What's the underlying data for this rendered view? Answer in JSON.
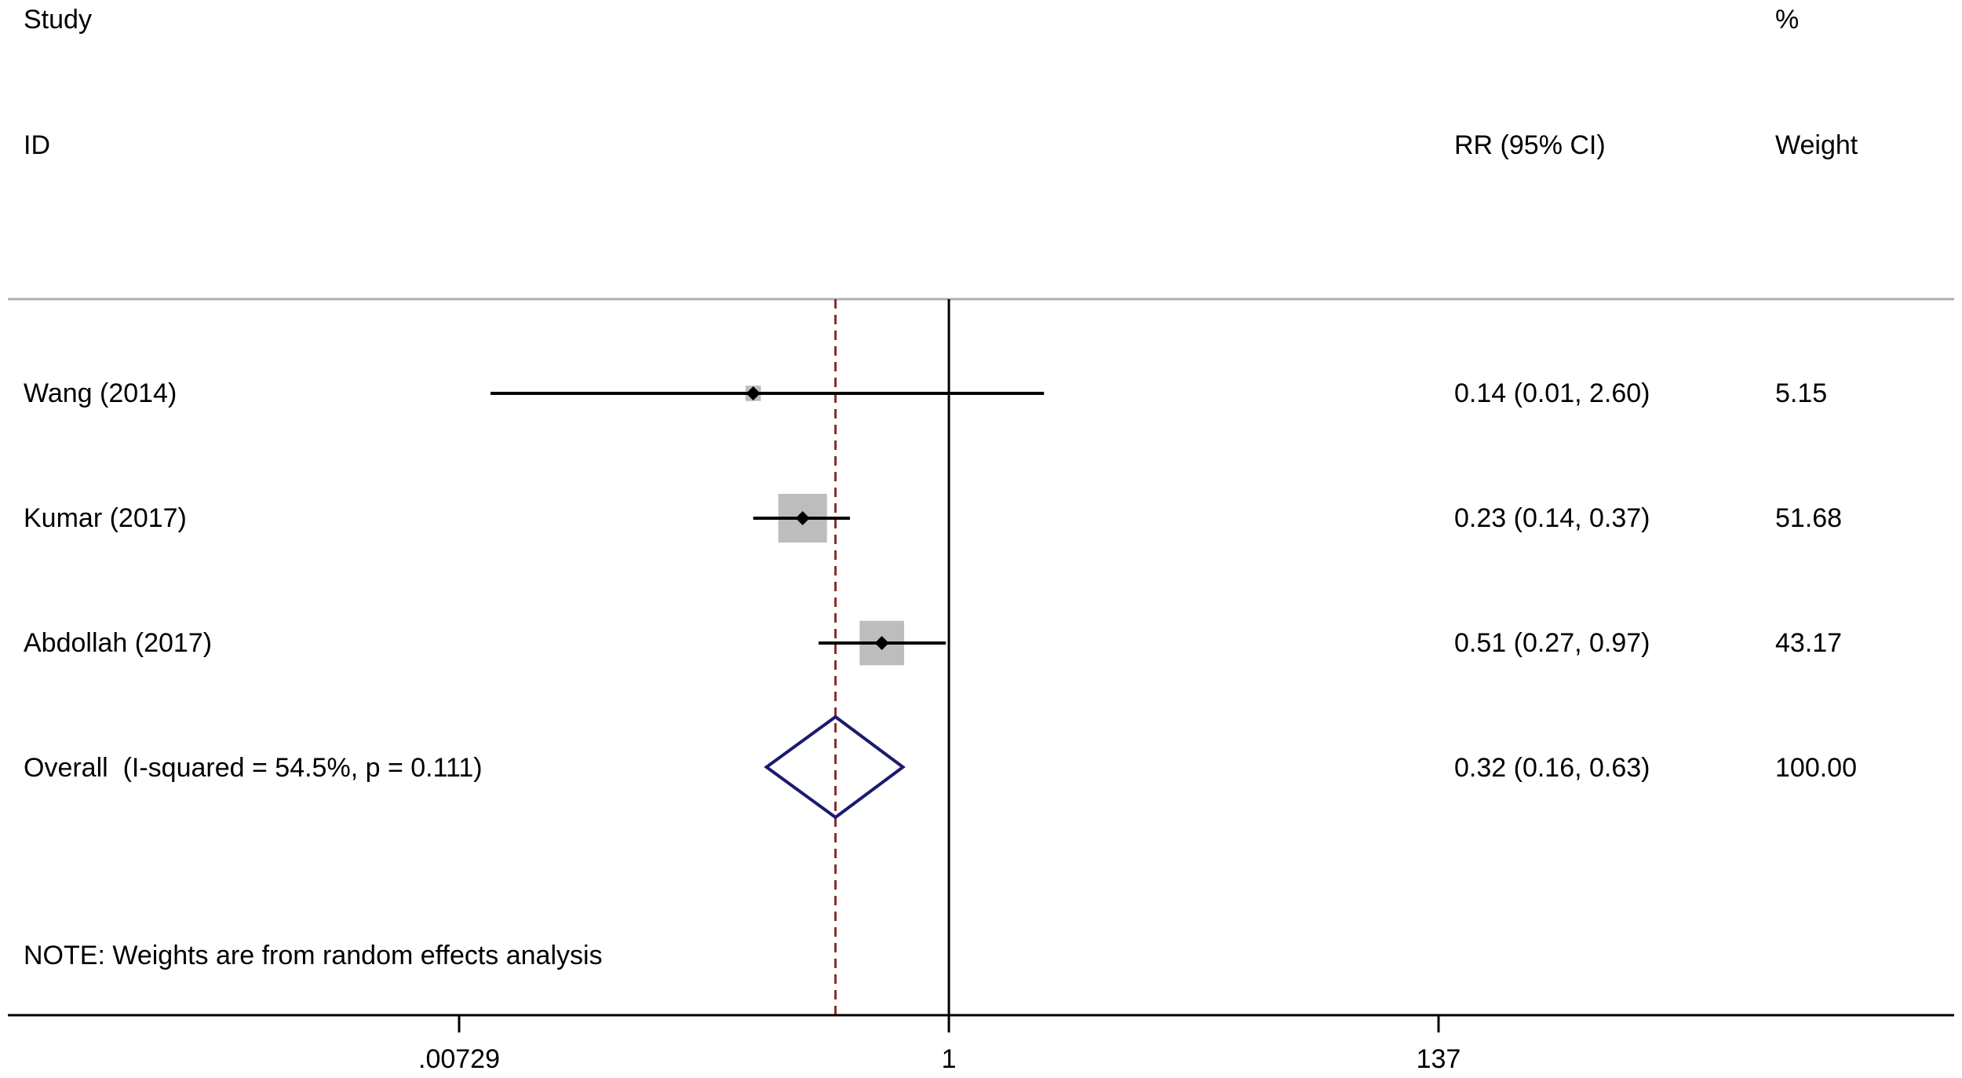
{
  "chart_data": {
    "type": "forest",
    "scale": "log",
    "headers": {
      "study_line1": "Study",
      "study_line2": "ID",
      "effect_header": "RR (95% CI)",
      "weight_line1": "%",
      "weight_line2": "Weight"
    },
    "studies": [
      {
        "label": "Wang (2014)",
        "rr": 0.14,
        "lower": 0.01,
        "upper": 2.6,
        "ci_text": "0.14 (0.01, 2.60)",
        "weight": 5.15,
        "weight_text": "5.15"
      },
      {
        "label": "Kumar (2017)",
        "rr": 0.23,
        "lower": 0.14,
        "upper": 0.37,
        "ci_text": "0.23 (0.14, 0.37)",
        "weight": 51.68,
        "weight_text": "51.68"
      },
      {
        "label": "Abdollah (2017)",
        "rr": 0.51,
        "lower": 0.27,
        "upper": 0.97,
        "ci_text": "0.51 (0.27, 0.97)",
        "weight": 43.17,
        "weight_text": "43.17"
      }
    ],
    "overall": {
      "label": "Overall  (I-squared = 54.5%, p = 0.111)",
      "rr": 0.32,
      "lower": 0.16,
      "upper": 0.63,
      "ci_text": "0.32 (0.16, 0.63)",
      "weight_text": "100.00"
    },
    "note": "NOTE: Weights are from random effects analysis",
    "x_ticks": [
      {
        "value": 0.00729,
        "label": ".00729"
      },
      {
        "value": 1,
        "label": "1"
      },
      {
        "value": 137,
        "label": "137"
      }
    ],
    "reference_line": 1,
    "colors": {
      "text": "#000000",
      "ci_line": "#000000",
      "weight_box": "#bdbdbd",
      "overall_diamond": "#1a1a6e",
      "overall_line": "#8b2a2a",
      "divider": "#b0b0b0"
    }
  }
}
